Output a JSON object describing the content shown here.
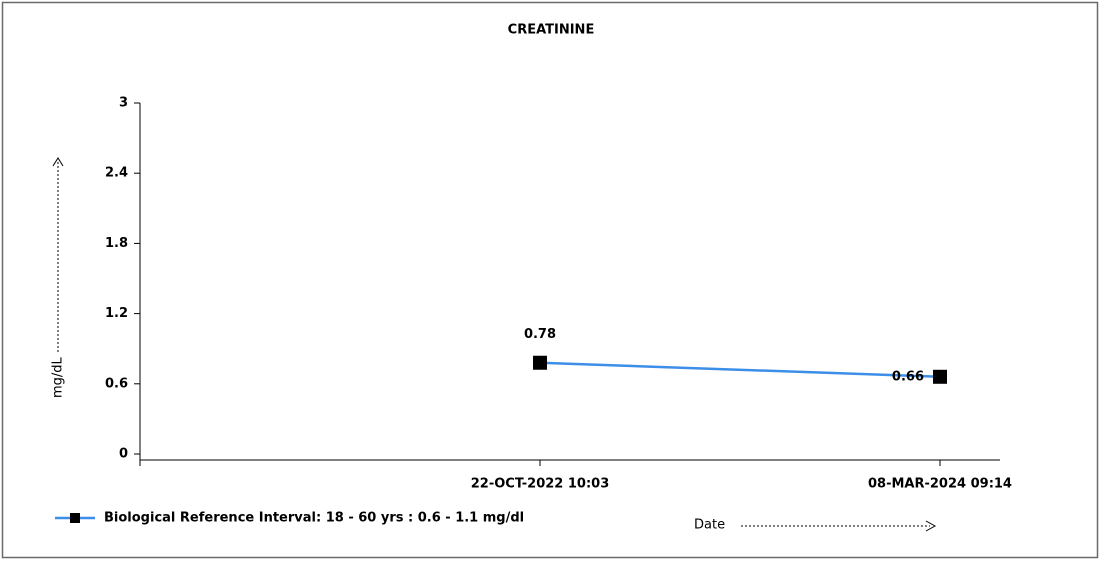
{
  "chart_data": {
    "type": "line",
    "title": "CREATININE",
    "y_label": "mg/dL",
    "x_label": "Date",
    "categories": [
      "22-OCT-2022 10:03",
      "08-MAR-2024 09:14"
    ],
    "series": [
      {
        "name": "Biological Reference Interval: 18 - 60 yrs : 0.6 - 1.1 mg/dl",
        "color": "#3c8ee8",
        "values": [
          0.78,
          0.66
        ]
      }
    ],
    "ylim": [
      0,
      3
    ],
    "yticks": [
      0,
      0.6,
      1.2,
      1.8,
      2.4,
      3
    ]
  }
}
